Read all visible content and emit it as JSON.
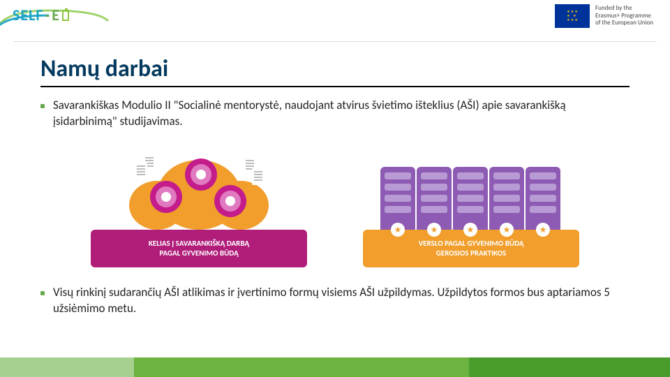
{
  "header": {
    "logo": {
      "self": "SELF",
      "dash": "-",
      "e": "E"
    },
    "eu": {
      "line1": "Funded by the",
      "line2": "Erasmus+ Programme",
      "line3": "of the European Union",
      "flag_bg": "#003399",
      "flag_stars_color": "#ffcc00"
    }
  },
  "title": "Namų darbai",
  "title_color": "#053a5f",
  "bullets": [
    "Savarankiškas Modulio II \"Socialinė mentorystė, naudojant atvirus švietimo išteklius (AŠI) apie savarankišką įsidarbinimą\" studijavimas.",
    "Visų rinkinį sudarančių AŠI atlikimas ir įvertinimo formų visiems AŠI užpildymas. Užpildytos formos bus aptariamos 5 užsiėmimo metu."
  ],
  "bullet_marker_color": "#6aa84f",
  "cards": [
    {
      "type": "infographic",
      "label_line1": "KELIAS Į SAVARANKIŠKĄ DARBĄ",
      "label_line2": "PAGAL GYVENIMO BŪDĄ",
      "label_bg": "#b01e7a",
      "graphic_bg": "#f19e2c",
      "node_outer": "#c41c8a",
      "node_mid": "#e07ac0"
    },
    {
      "type": "infographic",
      "label_line1": "VERSLO PAGAL GYVENIMO BŪDĄ",
      "label_line2": "GEROSIOS PRAKTIKOS",
      "label_bg": "#f19e2c",
      "rack_bg": "#8d5bb3",
      "rack_slot": "#b89bd4",
      "star_color": "#f19e2c"
    }
  ],
  "footer_colors": [
    "#a6d08f",
    "#6db33f",
    "#4a9c2d"
  ]
}
